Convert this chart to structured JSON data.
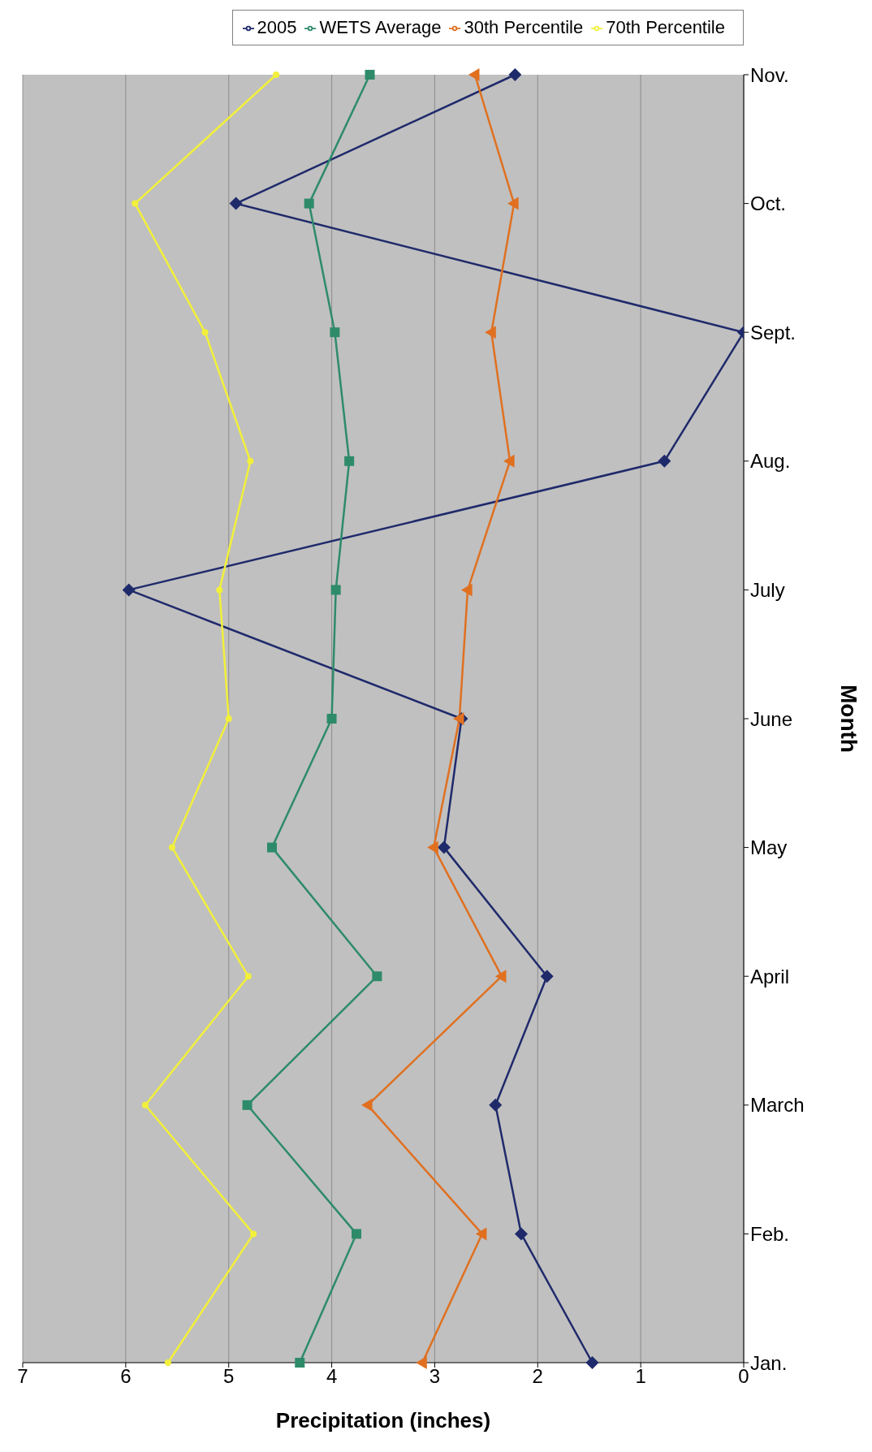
{
  "chart_data": {
    "type": "line",
    "xlabel": "Precipitation (inches)",
    "ylabel": "Month",
    "categories": [
      "Nov.",
      "Oct.",
      "Sept.",
      "Aug.",
      "July",
      "June",
      "May",
      "April",
      "March",
      "Feb.",
      "Jan."
    ],
    "series": [
      {
        "name": "2005",
        "color": "#1f2a6b",
        "marker": "diamond",
        "values": [
          2.22,
          4.93,
          0,
          0.77,
          5.97,
          2.74,
          2.91,
          1.91,
          2.41,
          2.16,
          1.47
        ]
      },
      {
        "name": "WETS Average",
        "color": "#2e8b6a",
        "marker": "square",
        "values": [
          3.63,
          4.22,
          3.97,
          3.83,
          3.96,
          4.0,
          4.58,
          3.56,
          4.82,
          3.76,
          4.31
        ]
      },
      {
        "name": "30th Percentile",
        "color": "#e07020",
        "marker": "triangle",
        "values": [
          2.61,
          2.23,
          2.45,
          2.27,
          2.68,
          2.76,
          3.01,
          2.35,
          3.65,
          2.54,
          3.12
        ]
      },
      {
        "name": "70th Percentile",
        "color": "#f2f03a",
        "marker": "circle",
        "values": [
          4.54,
          5.91,
          5.23,
          4.79,
          5.09,
          5.0,
          5.55,
          4.81,
          5.81,
          4.76,
          5.59
        ]
      }
    ],
    "orientation": "horizontal",
    "xlim": [
      7,
      0
    ],
    "xticks": [
      0,
      1,
      2,
      3,
      4,
      5,
      6,
      7
    ],
    "grid": "x",
    "legend": "top right",
    "line_style": "solid"
  }
}
